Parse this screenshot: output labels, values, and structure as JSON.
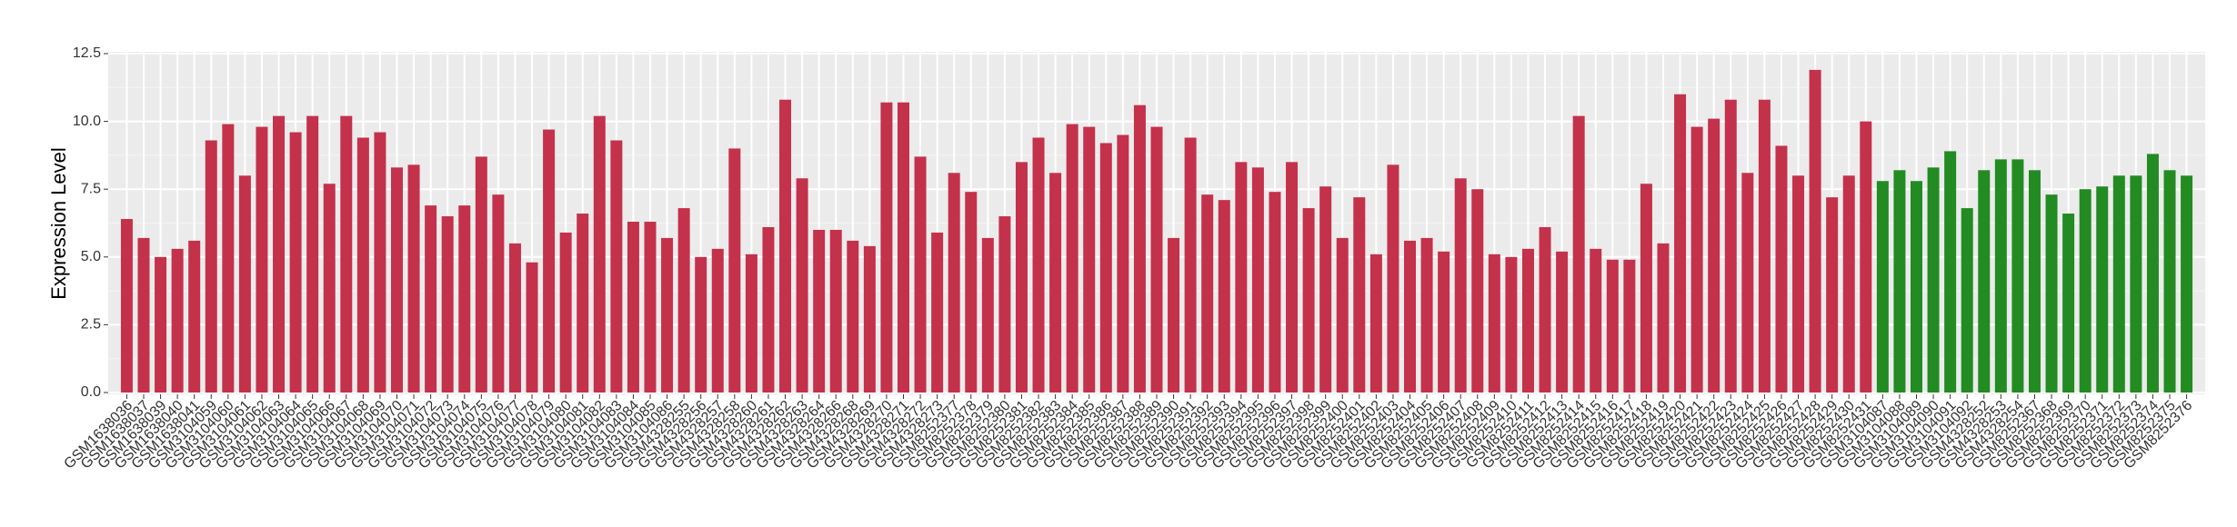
{
  "chart_data": {
    "type": "bar",
    "y_label": "Expression Level",
    "categories": [
      "GSM1638036",
      "GSM1638037",
      "GSM1638039",
      "GSM1638040",
      "GSM1638041",
      "GSM3104059",
      "GSM3104060",
      "GSM3104061",
      "GSM3104062",
      "GSM3104063",
      "GSM3104064",
      "GSM3104065",
      "GSM3104066",
      "GSM3104067",
      "GSM3104068",
      "GSM3104069",
      "GSM3104070",
      "GSM3104071",
      "GSM3104072",
      "GSM3104073",
      "GSM3104074",
      "GSM3104075",
      "GSM3104076",
      "GSM3104077",
      "GSM3104078",
      "GSM3104079",
      "GSM3104080",
      "GSM3104081",
      "GSM3104082",
      "GSM3104083",
      "GSM3104084",
      "GSM3104085",
      "GSM3104086",
      "GSM4328255",
      "GSM4328256",
      "GSM4328257",
      "GSM4328258",
      "GSM4328260",
      "GSM4328261",
      "GSM4328262",
      "GSM4328263",
      "GSM4328264",
      "GSM4328266",
      "GSM4328268",
      "GSM4328269",
      "GSM4328270",
      "GSM4328271",
      "GSM4328272",
      "GSM4328273",
      "GSM8252377",
      "GSM8252378",
      "GSM8252379",
      "GSM8252380",
      "GSM8252381",
      "GSM8252382",
      "GSM8252383",
      "GSM8252384",
      "GSM8252385",
      "GSM8252386",
      "GSM8252387",
      "GSM8252388",
      "GSM8252389",
      "GSM8252390",
      "GSM8252391",
      "GSM8252392",
      "GSM8252393",
      "GSM8252394",
      "GSM8252395",
      "GSM8252396",
      "GSM8252397",
      "GSM8252398",
      "GSM8252399",
      "GSM8252400",
      "GSM8252401",
      "GSM8252402",
      "GSM8252403",
      "GSM8252404",
      "GSM8252405",
      "GSM8252406",
      "GSM8252407",
      "GSM8252408",
      "GSM8252409",
      "GSM8252410",
      "GSM8252411",
      "GSM8252412",
      "GSM8252413",
      "GSM8252414",
      "GSM8252415",
      "GSM8252416",
      "GSM8252417",
      "GSM8252418",
      "GSM8252419",
      "GSM8252420",
      "GSM8252421",
      "GSM8252422",
      "GSM8252423",
      "GSM8252424",
      "GSM8252425",
      "GSM8252426",
      "GSM8252427",
      "GSM8252428",
      "GSM8252429",
      "GSM8252430",
      "GSM8252431",
      "GSM3104087",
      "GSM3104088",
      "GSM3104089",
      "GSM3104090",
      "GSM3104091",
      "GSM3104092",
      "GSM4328252",
      "GSM4328253",
      "GSM4328254",
      "GSM8252367",
      "GSM8252368",
      "GSM8252369",
      "GSM8252370",
      "GSM8252371",
      "GSM8252372",
      "GSM8252373",
      "GSM8252374",
      "GSM8252375",
      "GSM8252376"
    ],
    "values": [
      6.4,
      5.7,
      5.0,
      5.3,
      5.6,
      9.3,
      9.9,
      8.0,
      9.8,
      10.2,
      9.6,
      10.2,
      7.7,
      10.2,
      9.4,
      9.6,
      8.3,
      8.4,
      6.9,
      6.5,
      6.9,
      8.7,
      7.3,
      5.5,
      4.8,
      9.7,
      5.9,
      6.6,
      10.2,
      9.3,
      6.3,
      6.3,
      5.7,
      6.8,
      5.0,
      5.3,
      9.0,
      5.1,
      6.1,
      10.8,
      7.9,
      6.0,
      6.0,
      5.6,
      5.4,
      10.7,
      10.7,
      8.7,
      5.9,
      8.1,
      7.4,
      5.7,
      6.5,
      8.5,
      9.4,
      8.1,
      9.9,
      9.8,
      9.2,
      9.5,
      10.6,
      9.8,
      5.7,
      9.4,
      7.3,
      7.1,
      8.5,
      8.3,
      7.4,
      8.5,
      6.8,
      7.6,
      5.7,
      7.2,
      5.1,
      8.4,
      5.6,
      5.7,
      5.2,
      7.9,
      7.5,
      5.1,
      5.0,
      5.3,
      6.1,
      5.2,
      10.2,
      5.3,
      4.9,
      4.9,
      7.7,
      5.5,
      11.0,
      9.8,
      10.1,
      10.8,
      8.1,
      10.8,
      9.1,
      8.0,
      11.9,
      7.2,
      8.0,
      10.0,
      7.8,
      8.2,
      7.8,
      8.3,
      8.9,
      6.8,
      8.2,
      8.6,
      8.6,
      8.2,
      7.3,
      6.6,
      7.5,
      7.6,
      8.0,
      8.0,
      8.8,
      8.2,
      8.0
    ],
    "colors": [
      "#c4314b",
      "#c4314b",
      "#c4314b",
      "#c4314b",
      "#c4314b",
      "#c4314b",
      "#c4314b",
      "#c4314b",
      "#c4314b",
      "#c4314b",
      "#c4314b",
      "#c4314b",
      "#c4314b",
      "#c4314b",
      "#c4314b",
      "#c4314b",
      "#c4314b",
      "#c4314b",
      "#c4314b",
      "#c4314b",
      "#c4314b",
      "#c4314b",
      "#c4314b",
      "#c4314b",
      "#c4314b",
      "#c4314b",
      "#c4314b",
      "#c4314b",
      "#c4314b",
      "#c4314b",
      "#c4314b",
      "#c4314b",
      "#c4314b",
      "#c4314b",
      "#c4314b",
      "#c4314b",
      "#c4314b",
      "#c4314b",
      "#c4314b",
      "#c4314b",
      "#c4314b",
      "#c4314b",
      "#c4314b",
      "#c4314b",
      "#c4314b",
      "#c4314b",
      "#c4314b",
      "#c4314b",
      "#c4314b",
      "#c4314b",
      "#c4314b",
      "#c4314b",
      "#c4314b",
      "#c4314b",
      "#c4314b",
      "#c4314b",
      "#c4314b",
      "#c4314b",
      "#c4314b",
      "#c4314b",
      "#c4314b",
      "#c4314b",
      "#c4314b",
      "#c4314b",
      "#c4314b",
      "#c4314b",
      "#c4314b",
      "#c4314b",
      "#c4314b",
      "#c4314b",
      "#c4314b",
      "#c4314b",
      "#c4314b",
      "#c4314b",
      "#c4314b",
      "#c4314b",
      "#c4314b",
      "#c4314b",
      "#c4314b",
      "#c4314b",
      "#c4314b",
      "#c4314b",
      "#c4314b",
      "#c4314b",
      "#c4314b",
      "#c4314b",
      "#c4314b",
      "#c4314b",
      "#c4314b",
      "#c4314b",
      "#c4314b",
      "#c4314b",
      "#c4314b",
      "#c4314b",
      "#c4314b",
      "#c4314b",
      "#c4314b",
      "#c4314b",
      "#c4314b",
      "#c4314b",
      "#c4314b",
      "#c4314b",
      "#c4314b",
      "#c4314b",
      "#228b22",
      "#228b22",
      "#228b22",
      "#228b22",
      "#228b22",
      "#228b22",
      "#228b22",
      "#228b22",
      "#228b22",
      "#228b22",
      "#228b22",
      "#228b22",
      "#228b22",
      "#228b22",
      "#228b22",
      "#228b22",
      "#228b22",
      "#228b22",
      "#228b22"
    ],
    "ylim": [
      0,
      12.5
    ],
    "yticks": [
      {
        "value": 0,
        "label": "0.0"
      },
      2.5,
      {
        "value": 5,
        "label": "5.0"
      },
      7.5,
      {
        "value": 10,
        "label": "10.0"
      },
      12.5
    ],
    "grid": true
  }
}
